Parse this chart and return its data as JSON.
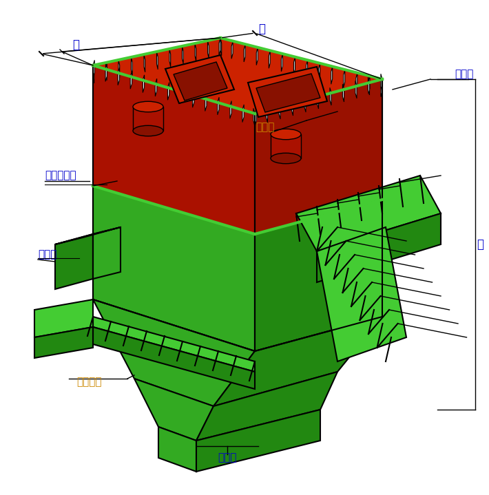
{
  "bg_color": "#ffffff",
  "red_top": "#cc2200",
  "red_face": "#aa1100",
  "green_body": "#33aa22",
  "green_dark": "#228811",
  "green_bright": "#44cc33",
  "black": "#000000",
  "label_color_blue": "#0000cc",
  "label_color_orange": "#cc8800",
  "dim_line_color": "#000000",
  "labels": {
    "kuan": "宽",
    "chang": "长",
    "mai_chong_fa": "脉冲阀",
    "jian_xiu_men": "检修门",
    "li_xian": "离线气动阀",
    "jin_feng_kou": "进风口",
    "pa_ti": "爬梯走道",
    "chu_feng_kou": "出风口",
    "gao": "高"
  },
  "figsize": [
    7.1,
    7.19
  ],
  "dpi": 100
}
